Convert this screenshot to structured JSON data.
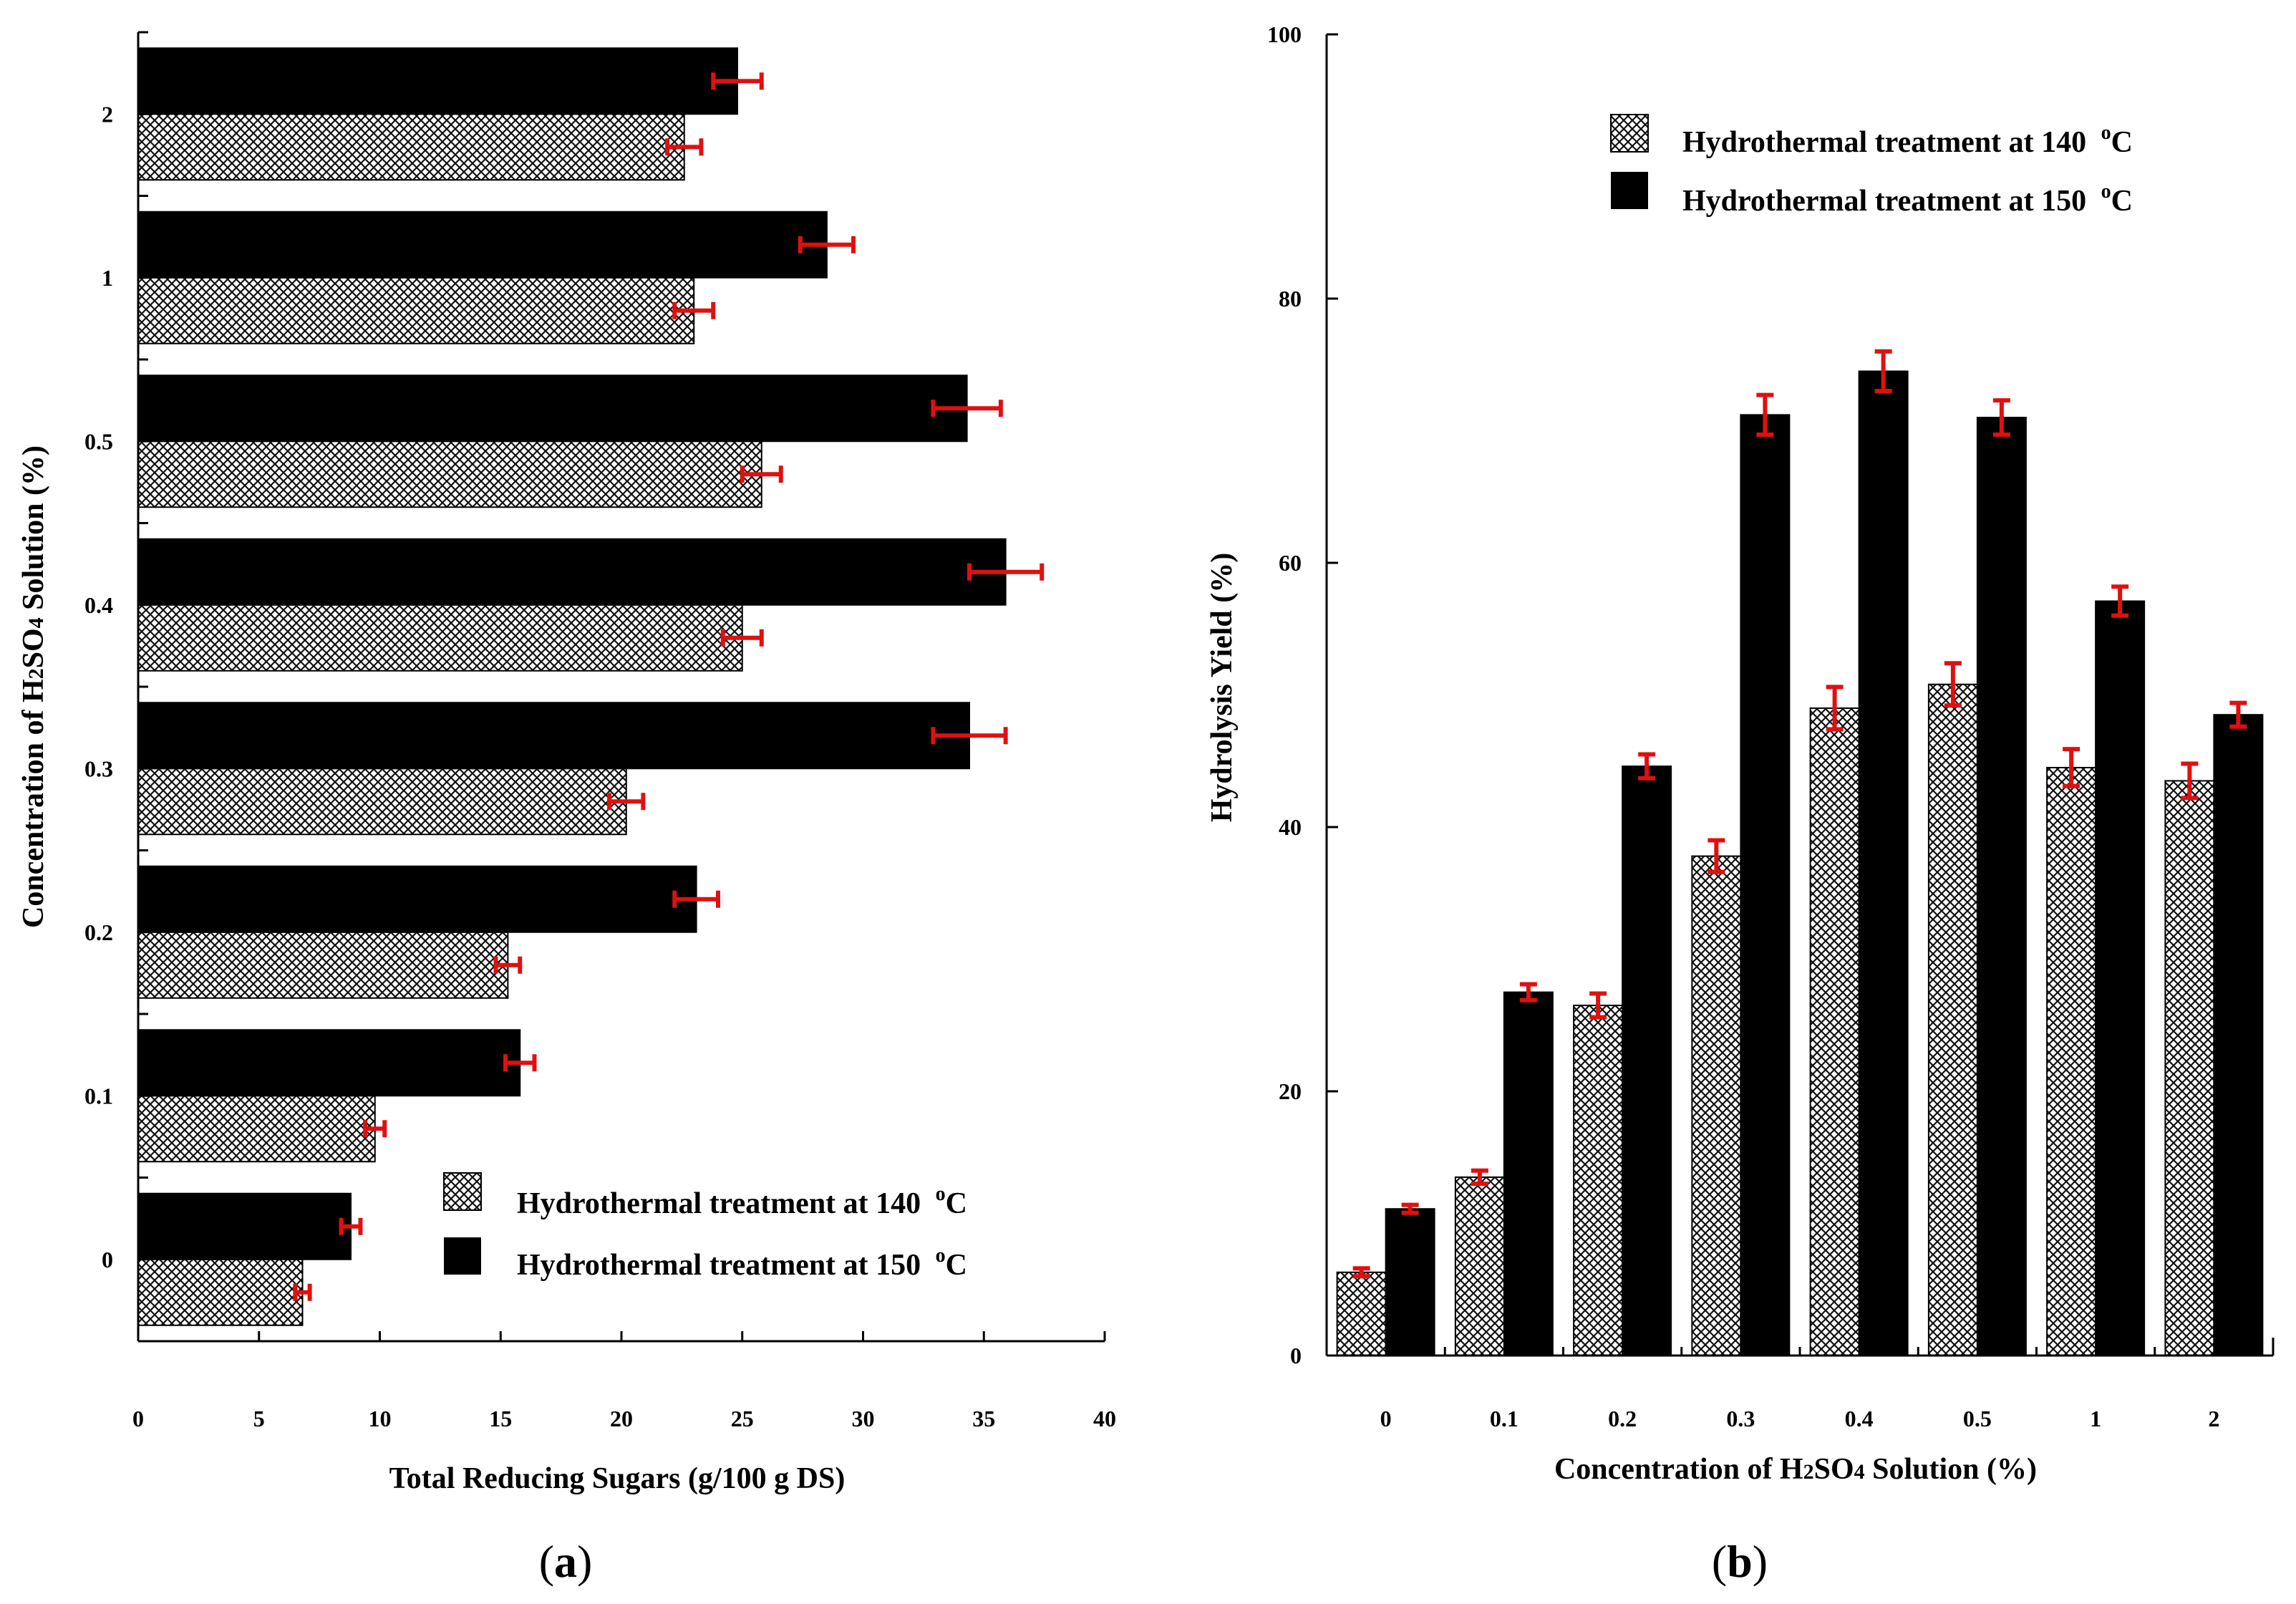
{
  "chart_data": [
    {
      "type": "bar",
      "orientation": "horizontal",
      "panel_label": "(a)",
      "categories": [
        "0",
        "0.1",
        "0.2",
        "0.3",
        "0.4",
        "0.5",
        "1",
        "2"
      ],
      "series": [
        {
          "name": "Hydrothermal treatment at 140",
          "unit": "oC",
          "pattern": "crosshatch",
          "values": [
            6.8,
            9.8,
            15.3,
            20.2,
            25.0,
            25.8,
            23.0,
            22.6
          ],
          "errors": [
            0.3,
            0.4,
            0.5,
            0.7,
            0.8,
            0.8,
            0.8,
            0.7
          ]
        },
        {
          "name": "Hydrothermal treatment at 150",
          "unit": "oC",
          "pattern": "solid",
          "values": [
            8.8,
            15.8,
            23.1,
            34.4,
            35.9,
            34.3,
            28.5,
            24.8
          ],
          "errors": [
            0.4,
            0.6,
            0.9,
            1.5,
            1.5,
            1.4,
            1.1,
            1.0
          ]
        }
      ],
      "xlabel": "Total Reducing Sugars (g/100 g DS)",
      "ylabel_parts": [
        "Concentration of H",
        "2",
        "SO",
        "4",
        " Solution (%)"
      ],
      "xlim": [
        0,
        40
      ],
      "xticks": [
        "0",
        "5",
        "10",
        "15",
        "20",
        "25",
        "30",
        "35",
        "40"
      ],
      "legend_position": "bottom-right",
      "grid": false
    },
    {
      "type": "bar",
      "orientation": "vertical",
      "panel_label": "(b)",
      "categories": [
        "0",
        "0.1",
        "0.2",
        "0.3",
        "0.4",
        "0.5",
        "1",
        "2"
      ],
      "series": [
        {
          "name": "Hydrothermal treatment at 140",
          "unit": "oC",
          "pattern": "crosshatch",
          "values": [
            6.3,
            13.5,
            26.5,
            37.8,
            49.0,
            50.8,
            44.5,
            43.5
          ],
          "errors": [
            0.3,
            0.5,
            0.9,
            1.2,
            1.6,
            1.6,
            1.4,
            1.3
          ]
        },
        {
          "name": "Hydrothermal treatment at 150",
          "unit": "oC",
          "pattern": "solid",
          "values": [
            11.1,
            27.5,
            44.6,
            71.2,
            74.5,
            71.0,
            57.1,
            48.5
          ],
          "errors": [
            0.3,
            0.6,
            0.9,
            1.5,
            1.5,
            1.3,
            1.1,
            0.9
          ]
        }
      ],
      "xlabel_parts": [
        "Concentration of H",
        "2",
        "SO",
        "4",
        " Solution (%)"
      ],
      "ylabel": "Hydrolysis Yield (%)",
      "ylim": [
        0,
        100
      ],
      "yticks": [
        "0",
        "20",
        "40",
        "60",
        "80",
        "100"
      ],
      "legend_position": "top-left",
      "grid": false
    }
  ]
}
